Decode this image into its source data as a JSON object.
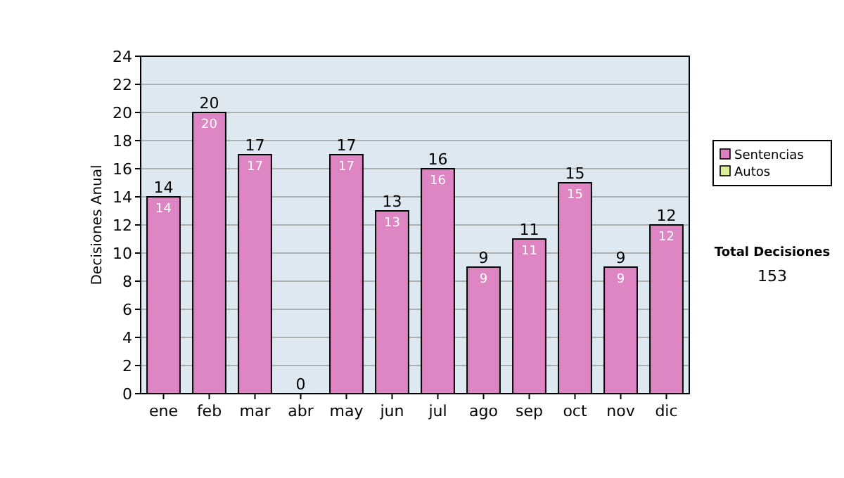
{
  "chart_data": {
    "type": "bar",
    "ylabel": "Decisiones Anual",
    "categories": [
      "ene",
      "feb",
      "mar",
      "abr",
      "may",
      "jun",
      "jul",
      "ago",
      "sep",
      "oct",
      "nov",
      "dic"
    ],
    "series": [
      {
        "name": "Sentencias",
        "color": "#dd80c0",
        "values": [
          14,
          20,
          17,
          0,
          17,
          13,
          16,
          9,
          11,
          15,
          9,
          12
        ],
        "value_labels": [
          "14",
          "20",
          "17",
          null,
          "17",
          "13",
          "16",
          "9",
          "11",
          "15",
          "9",
          "12"
        ]
      },
      {
        "name": "Autos",
        "color": "#ddee99",
        "values": [
          0,
          0,
          0,
          0,
          0,
          0,
          0,
          0,
          0,
          0,
          0,
          0
        ],
        "value_labels": [
          null,
          null,
          null,
          null,
          null,
          null,
          null,
          null,
          null,
          null,
          null,
          null
        ]
      }
    ],
    "stacked": true,
    "totals": [
      "14",
      "20",
      "17",
      "0",
      "17",
      "13",
      "16",
      "9",
      "11",
      "15",
      "9",
      "12"
    ],
    "ylim": [
      0,
      24
    ],
    "yticks": [
      0,
      2,
      4,
      6,
      8,
      10,
      12,
      14,
      16,
      18,
      20,
      22,
      24
    ],
    "grid": "y",
    "legend": "right",
    "annotations": [
      "Total Decisiones",
      "153"
    ]
  }
}
